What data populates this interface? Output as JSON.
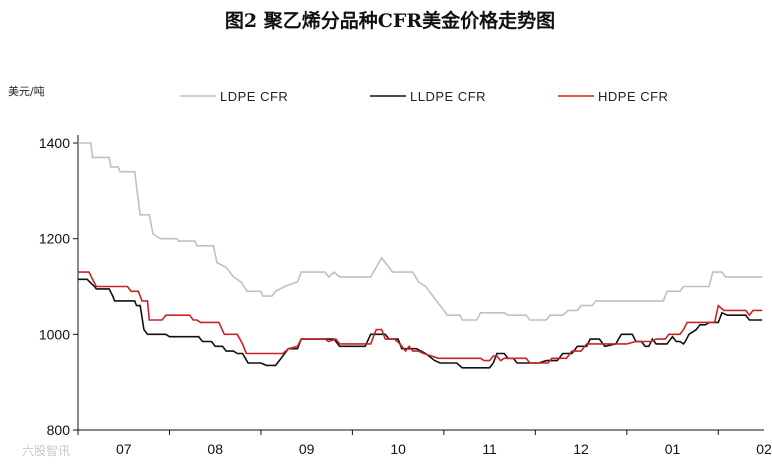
{
  "chart_data": {
    "type": "line",
    "title": "图2      聚乙烯分品种CFR美金价格走势图",
    "ylabel": "美元/吨",
    "xlabel": "",
    "ylim": [
      800,
      1400
    ],
    "yticks": [
      800,
      1000,
      1200,
      1400
    ],
    "xlim": [
      0,
      7.5
    ],
    "x_ticks": [
      {
        "x": 0,
        "label": "07"
      },
      {
        "x": 1,
        "label": "08"
      },
      {
        "x": 2,
        "label": "09"
      },
      {
        "x": 3,
        "label": "10"
      },
      {
        "x": 4,
        "label": "11"
      },
      {
        "x": 5,
        "label": "12"
      },
      {
        "x": 6,
        "label": "01"
      },
      {
        "x": 7,
        "label": "02"
      }
    ],
    "legend_position": "top",
    "series": [
      {
        "name": "LDPE CFR",
        "color": "#c0c0c0",
        "points": [
          [
            0.0,
            1400
          ],
          [
            0.14,
            1400
          ],
          [
            0.16,
            1370
          ],
          [
            0.34,
            1370
          ],
          [
            0.36,
            1350
          ],
          [
            0.44,
            1350
          ],
          [
            0.46,
            1340
          ],
          [
            0.62,
            1340
          ],
          [
            0.68,
            1250
          ],
          [
            0.78,
            1250
          ],
          [
            0.82,
            1210
          ],
          [
            0.9,
            1200
          ],
          [
            1.08,
            1200
          ],
          [
            1.1,
            1195
          ],
          [
            1.28,
            1195
          ],
          [
            1.3,
            1185
          ],
          [
            1.48,
            1185
          ],
          [
            1.52,
            1150
          ],
          [
            1.62,
            1140
          ],
          [
            1.7,
            1120
          ],
          [
            1.78,
            1110
          ],
          [
            1.85,
            1090
          ],
          [
            2.0,
            1090
          ],
          [
            2.02,
            1080
          ],
          [
            2.12,
            1080
          ],
          [
            2.16,
            1090
          ],
          [
            2.26,
            1100
          ],
          [
            2.4,
            1110
          ],
          [
            2.44,
            1130
          ],
          [
            2.7,
            1130
          ],
          [
            2.74,
            1120
          ],
          [
            2.8,
            1130
          ],
          [
            2.86,
            1120
          ],
          [
            3.0,
            1120
          ],
          [
            3.2,
            1120
          ],
          [
            3.26,
            1140
          ],
          [
            3.32,
            1160
          ],
          [
            3.36,
            1150
          ],
          [
            3.44,
            1130
          ],
          [
            3.66,
            1130
          ],
          [
            3.72,
            1110
          ],
          [
            3.8,
            1100
          ],
          [
            3.88,
            1080
          ],
          [
            3.96,
            1060
          ],
          [
            4.04,
            1040
          ],
          [
            4.18,
            1040
          ],
          [
            4.2,
            1030
          ],
          [
            4.36,
            1030
          ],
          [
            4.4,
            1045
          ],
          [
            4.66,
            1045
          ],
          [
            4.7,
            1040
          ],
          [
            4.9,
            1040
          ],
          [
            4.94,
            1030
          ],
          [
            5.12,
            1030
          ],
          [
            5.16,
            1040
          ],
          [
            5.3,
            1040
          ],
          [
            5.36,
            1050
          ],
          [
            5.46,
            1050
          ],
          [
            5.5,
            1060
          ],
          [
            5.62,
            1060
          ],
          [
            5.66,
            1070
          ],
          [
            6.4,
            1070
          ],
          [
            6.44,
            1090
          ],
          [
            6.58,
            1090
          ],
          [
            6.62,
            1100
          ],
          [
            6.9,
            1100
          ],
          [
            6.94,
            1130
          ],
          [
            7.04,
            1130
          ],
          [
            7.08,
            1120
          ],
          [
            7.48,
            1120
          ]
        ]
      },
      {
        "name": "LLDPE CFR",
        "color": "#111111",
        "points": [
          [
            0.0,
            1115
          ],
          [
            0.1,
            1115
          ],
          [
            0.18,
            1100
          ],
          [
            0.2,
            1095
          ],
          [
            0.34,
            1095
          ],
          [
            0.38,
            1080
          ],
          [
            0.4,
            1070
          ],
          [
            0.62,
            1070
          ],
          [
            0.64,
            1060
          ],
          [
            0.68,
            1060
          ],
          [
            0.72,
            1010
          ],
          [
            0.76,
            1000
          ],
          [
            0.96,
            1000
          ],
          [
            1.0,
            995
          ],
          [
            1.32,
            995
          ],
          [
            1.36,
            985
          ],
          [
            1.46,
            985
          ],
          [
            1.5,
            975
          ],
          [
            1.58,
            975
          ],
          [
            1.62,
            965
          ],
          [
            1.7,
            965
          ],
          [
            1.74,
            960
          ],
          [
            1.8,
            960
          ],
          [
            1.86,
            940
          ],
          [
            2.0,
            940
          ],
          [
            2.06,
            935
          ],
          [
            2.16,
            935
          ],
          [
            2.22,
            950
          ],
          [
            2.3,
            970
          ],
          [
            2.4,
            970
          ],
          [
            2.44,
            990
          ],
          [
            2.8,
            990
          ],
          [
            2.86,
            975
          ],
          [
            3.0,
            975
          ],
          [
            3.14,
            975
          ],
          [
            3.2,
            1000
          ],
          [
            3.36,
            1000
          ],
          [
            3.4,
            990
          ],
          [
            3.5,
            990
          ],
          [
            3.54,
            970
          ],
          [
            3.7,
            970
          ],
          [
            3.8,
            960
          ],
          [
            3.9,
            945
          ],
          [
            3.96,
            940
          ],
          [
            4.14,
            940
          ],
          [
            4.2,
            930
          ],
          [
            4.5,
            930
          ],
          [
            4.54,
            940
          ],
          [
            4.58,
            960
          ],
          [
            4.66,
            960
          ],
          [
            4.7,
            950
          ],
          [
            4.76,
            950
          ],
          [
            4.8,
            940
          ],
          [
            5.0,
            940
          ],
          [
            5.04,
            940
          ],
          [
            5.12,
            945
          ],
          [
            5.24,
            945
          ],
          [
            5.3,
            960
          ],
          [
            5.4,
            960
          ],
          [
            5.46,
            975
          ],
          [
            5.56,
            975
          ],
          [
            5.6,
            990
          ],
          [
            5.7,
            990
          ],
          [
            5.74,
            980
          ],
          [
            5.76,
            975
          ],
          [
            5.88,
            980
          ],
          [
            5.94,
            1000
          ],
          [
            6.06,
            1000
          ],
          [
            6.1,
            985
          ],
          [
            6.16,
            985
          ],
          [
            6.2,
            975
          ],
          [
            6.24,
            975
          ],
          [
            6.28,
            990
          ],
          [
            6.32,
            980
          ],
          [
            6.44,
            980
          ],
          [
            6.5,
            995
          ],
          [
            6.54,
            985
          ],
          [
            6.58,
            985
          ],
          [
            6.62,
            980
          ],
          [
            6.64,
            985
          ],
          [
            6.68,
            1000
          ],
          [
            6.76,
            1010
          ],
          [
            6.8,
            1020
          ],
          [
            6.86,
            1020
          ],
          [
            6.9,
            1025
          ],
          [
            7.0,
            1025
          ],
          [
            7.04,
            1045
          ],
          [
            7.1,
            1040
          ],
          [
            7.3,
            1040
          ],
          [
            7.34,
            1030
          ],
          [
            7.48,
            1030
          ]
        ]
      },
      {
        "name": "HDPE CFR",
        "color": "#cc2222",
        "points": [
          [
            0.0,
            1130
          ],
          [
            0.12,
            1130
          ],
          [
            0.16,
            1115
          ],
          [
            0.2,
            1100
          ],
          [
            0.54,
            1100
          ],
          [
            0.58,
            1090
          ],
          [
            0.66,
            1090
          ],
          [
            0.7,
            1070
          ],
          [
            0.76,
            1070
          ],
          [
            0.78,
            1030
          ],
          [
            0.92,
            1030
          ],
          [
            0.96,
            1040
          ],
          [
            1.22,
            1040
          ],
          [
            1.26,
            1030
          ],
          [
            1.3,
            1030
          ],
          [
            1.34,
            1025
          ],
          [
            1.54,
            1025
          ],
          [
            1.6,
            1000
          ],
          [
            1.74,
            1000
          ],
          [
            1.8,
            980
          ],
          [
            1.84,
            960
          ],
          [
            2.24,
            960
          ],
          [
            2.3,
            970
          ],
          [
            2.4,
            975
          ],
          [
            2.44,
            990
          ],
          [
            2.7,
            990
          ],
          [
            2.74,
            985
          ],
          [
            2.82,
            990
          ],
          [
            2.86,
            980
          ],
          [
            3.0,
            980
          ],
          [
            3.2,
            980
          ],
          [
            3.26,
            1010
          ],
          [
            3.32,
            1010
          ],
          [
            3.36,
            990
          ],
          [
            3.46,
            990
          ],
          [
            3.52,
            980
          ],
          [
            3.58,
            965
          ],
          [
            3.62,
            975
          ],
          [
            3.66,
            965
          ],
          [
            3.72,
            965
          ],
          [
            3.78,
            960
          ],
          [
            3.86,
            955
          ],
          [
            3.94,
            950
          ],
          [
            4.4,
            950
          ],
          [
            4.44,
            945
          ],
          [
            4.5,
            945
          ],
          [
            4.54,
            955
          ],
          [
            4.58,
            955
          ],
          [
            4.62,
            945
          ],
          [
            4.66,
            950
          ],
          [
            4.9,
            950
          ],
          [
            4.94,
            940
          ],
          [
            5.14,
            940
          ],
          [
            5.18,
            950
          ],
          [
            5.34,
            950
          ],
          [
            5.4,
            965
          ],
          [
            5.5,
            965
          ],
          [
            5.56,
            980
          ],
          [
            6.0,
            980
          ],
          [
            6.1,
            985
          ],
          [
            6.2,
            985
          ],
          [
            6.26,
            985
          ],
          [
            6.32,
            990
          ],
          [
            6.42,
            990
          ],
          [
            6.46,
            1000
          ],
          [
            6.58,
            1000
          ],
          [
            6.62,
            1010
          ],
          [
            6.66,
            1025
          ],
          [
            6.96,
            1025
          ],
          [
            7.0,
            1060
          ],
          [
            7.06,
            1050
          ],
          [
            7.3,
            1050
          ],
          [
            7.34,
            1040
          ],
          [
            7.38,
            1050
          ],
          [
            7.48,
            1050
          ]
        ]
      }
    ],
    "grid": false
  },
  "watermark": "六股智讯"
}
